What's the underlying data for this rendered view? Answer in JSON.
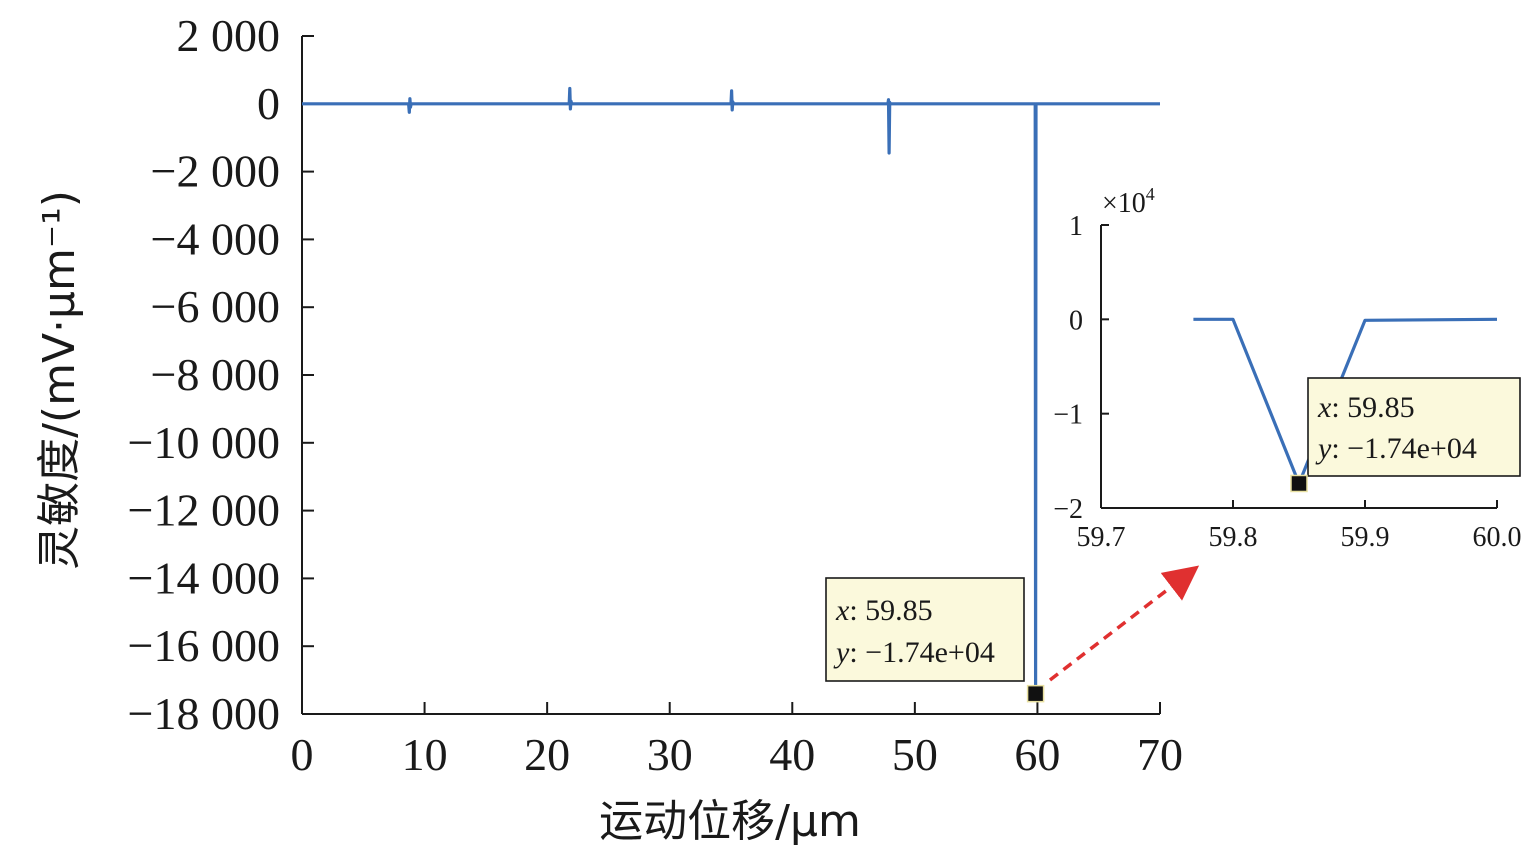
{
  "chart_data": [
    {
      "type": "line",
      "title": "",
      "xlabel": "运动位移/μm",
      "ylabel": "灵敏度/(mV·μm⁻¹)",
      "xlim": [
        0,
        70
      ],
      "ylim": [
        -18000,
        2000
      ],
      "x_ticks": [
        0,
        10,
        20,
        30,
        40,
        50,
        60,
        70
      ],
      "x_tick_labels": [
        "0",
        "10",
        "20",
        "30",
        "40",
        "50",
        "60",
        "70"
      ],
      "y_ticks": [
        2000,
        0,
        -2000,
        -4000,
        -6000,
        -8000,
        -10000,
        -12000,
        -14000,
        -16000,
        -18000
      ],
      "y_tick_labels": [
        "2 000",
        "0",
        "−2 000",
        "−4 000",
        "−6 000",
        "−8 000",
        "−10 000",
        "−12 000",
        "−14 000",
        "−16 000",
        "−18 000"
      ],
      "series": [
        {
          "color": "#3a6fb7",
          "x": [
            0,
            8.7,
            8.75,
            8.8,
            8.85,
            8.9,
            21.8,
            21.85,
            21.9,
            21.95,
            22.0,
            35.0,
            35.05,
            35.1,
            35.15,
            35.2,
            47.8,
            47.85,
            47.9,
            47.95,
            48.0,
            59.82,
            59.85,
            59.88,
            70
          ],
          "y": [
            0,
            0,
            -250,
            150,
            -100,
            0,
            0,
            450,
            -150,
            80,
            0,
            0,
            380,
            -180,
            60,
            0,
            0,
            120,
            -1450,
            40,
            0,
            0,
            -17400,
            0,
            0
          ]
        }
      ],
      "annotation": {
        "x_value": 59.85,
        "y_value": -17400,
        "lines": [
          {
            "key": "x",
            "value": ": 59.85"
          },
          {
            "key": "y",
            "value": ": −1.74e+04"
          }
        ]
      },
      "grid": false,
      "legend": "none"
    },
    {
      "type": "line",
      "title": "",
      "xlabel": "",
      "ylabel": "",
      "xlim": [
        59.7,
        60.0
      ],
      "ylim": [
        -2,
        1
      ],
      "y_scale_label": "×10",
      "y_scale_exponent": "4",
      "x_ticks": [
        59.7,
        59.8,
        59.9,
        60.0
      ],
      "x_tick_labels": [
        "59.7",
        "59.8",
        "59.9",
        "60.0"
      ],
      "y_ticks": [
        1,
        0,
        -1,
        -2
      ],
      "y_tick_labels": [
        "1",
        "0",
        "−1",
        "−2"
      ],
      "series": [
        {
          "color": "#3a6fb7",
          "x": [
            59.77,
            59.8,
            59.85,
            59.9,
            60.0
          ],
          "y": [
            0,
            0,
            -1.74,
            -0.01,
            0
          ]
        }
      ],
      "annotation": {
        "x_value": 59.85,
        "y_value": -1.74,
        "lines": [
          {
            "key": "x",
            "value": ": 59.85"
          },
          {
            "key": "y",
            "value": ": −1.74e+04"
          }
        ]
      },
      "grid": false,
      "legend": "none"
    }
  ]
}
